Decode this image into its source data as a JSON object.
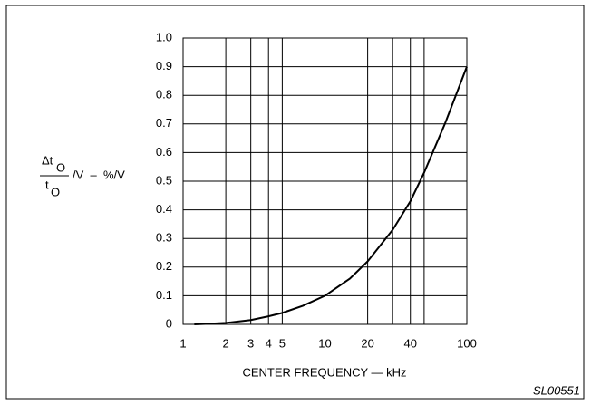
{
  "chart_data": {
    "type": "line",
    "xscale": "log",
    "x_label": "CENTER FREQUENCY — kHz",
    "y_label": {
      "numerator": "Δt",
      "numerator_sub": "O",
      "denominator": "t",
      "denominator_sub": "O",
      "suffix": "/V  –  %/V"
    },
    "code": "SL00551",
    "x": [
      1.2,
      1.5,
      2,
      3,
      4,
      5,
      7,
      10,
      15,
      20,
      30,
      40,
      50,
      70,
      100
    ],
    "values": [
      0,
      0.002,
      0.005,
      0.015,
      0.028,
      0.04,
      0.065,
      0.1,
      0.16,
      0.22,
      0.33,
      0.43,
      0.53,
      0.7,
      0.9
    ],
    "color": "#000000",
    "xlim": [
      1,
      100
    ],
    "xticks": [
      1,
      2,
      3,
      4,
      5,
      10,
      20,
      40,
      100
    ],
    "xgrid": [
      2,
      3,
      4,
      5,
      10,
      20,
      30,
      40,
      50,
      100
    ],
    "ylim": [
      0,
      1
    ],
    "yticks": [
      0,
      0.1,
      0.2,
      0.3,
      0.4,
      0.5,
      0.6,
      0.7,
      0.8,
      0.9,
      {
        "value": 1,
        "label": "1.0"
      }
    ],
    "grid": true
  }
}
